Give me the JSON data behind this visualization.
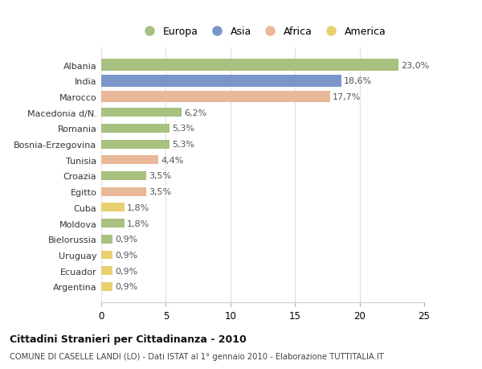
{
  "categories": [
    "Albania",
    "India",
    "Marocco",
    "Macedonia d/N.",
    "Romania",
    "Bosnia-Erzegovina",
    "Tunisia",
    "Croazia",
    "Egitto",
    "Cuba",
    "Moldova",
    "Bielorussia",
    "Uruguay",
    "Ecuador",
    "Argentina"
  ],
  "values": [
    23.0,
    18.6,
    17.7,
    6.2,
    5.3,
    5.3,
    4.4,
    3.5,
    3.5,
    1.8,
    1.8,
    0.9,
    0.9,
    0.9,
    0.9
  ],
  "labels": [
    "23,0%",
    "18,6%",
    "17,7%",
    "6,2%",
    "5,3%",
    "5,3%",
    "4,4%",
    "3,5%",
    "3,5%",
    "1,8%",
    "1,8%",
    "0,9%",
    "0,9%",
    "0,9%",
    "0,9%"
  ],
  "continents": [
    "Europa",
    "Asia",
    "Africa",
    "Europa",
    "Europa",
    "Europa",
    "Africa",
    "Europa",
    "Africa",
    "America",
    "Europa",
    "Europa",
    "America",
    "America",
    "America"
  ],
  "colors": {
    "Europa": "#a8c080",
    "Asia": "#7b95c8",
    "Africa": "#e8b898",
    "America": "#e8d070"
  },
  "legend_order": [
    "Europa",
    "Asia",
    "Africa",
    "America"
  ],
  "title": "Cittadini Stranieri per Cittadinanza - 2010",
  "subtitle": "COMUNE DI CASELLE LANDI (LO) - Dati ISTAT al 1° gennaio 2010 - Elaborazione TUTTITALIA.IT",
  "xlim": [
    0,
    25
  ],
  "xticks": [
    0,
    5,
    10,
    15,
    20,
    25
  ],
  "background_color": "#ffffff",
  "grid_color": "#e0e0e0"
}
